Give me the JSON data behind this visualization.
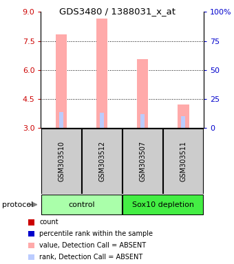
{
  "title": "GDS3480 / 1388031_x_at",
  "samples": [
    "GSM303510",
    "GSM303512",
    "GSM303507",
    "GSM303511"
  ],
  "ylim_left": [
    3,
    9
  ],
  "ylim_right": [
    0,
    100
  ],
  "yticks_left": [
    3,
    4.5,
    6,
    7.5,
    9
  ],
  "yticks_right": [
    0,
    25,
    50,
    75,
    100
  ],
  "ytick_labels_right": [
    "0",
    "25",
    "50",
    "75",
    "100%"
  ],
  "bar_values": [
    7.85,
    8.65,
    6.55,
    4.2
  ],
  "rank_values": [
    14,
    13,
    12,
    10
  ],
  "bar_color_absent": "#ffaaaa",
  "rank_color_absent": "#bbccff",
  "legend_items": [
    {
      "color": "#cc0000",
      "label": "count"
    },
    {
      "color": "#0000cc",
      "label": "percentile rank within the sample"
    },
    {
      "color": "#ffaaaa",
      "label": "value, Detection Call = ABSENT"
    },
    {
      "color": "#bbccff",
      "label": "rank, Detection Call = ABSENT"
    }
  ],
  "left_axis_color": "#cc0000",
  "right_axis_color": "#0000cc",
  "sample_box_color": "#cccccc",
  "group_spans": [
    {
      "start": 0,
      "end": 1,
      "label": "control",
      "color": "#aaffaa"
    },
    {
      "start": 2,
      "end": 3,
      "label": "Sox10 depletion",
      "color": "#44ee44"
    }
  ],
  "dotted_lines": [
    4.5,
    6,
    7.5
  ],
  "bar_bottom": 3
}
